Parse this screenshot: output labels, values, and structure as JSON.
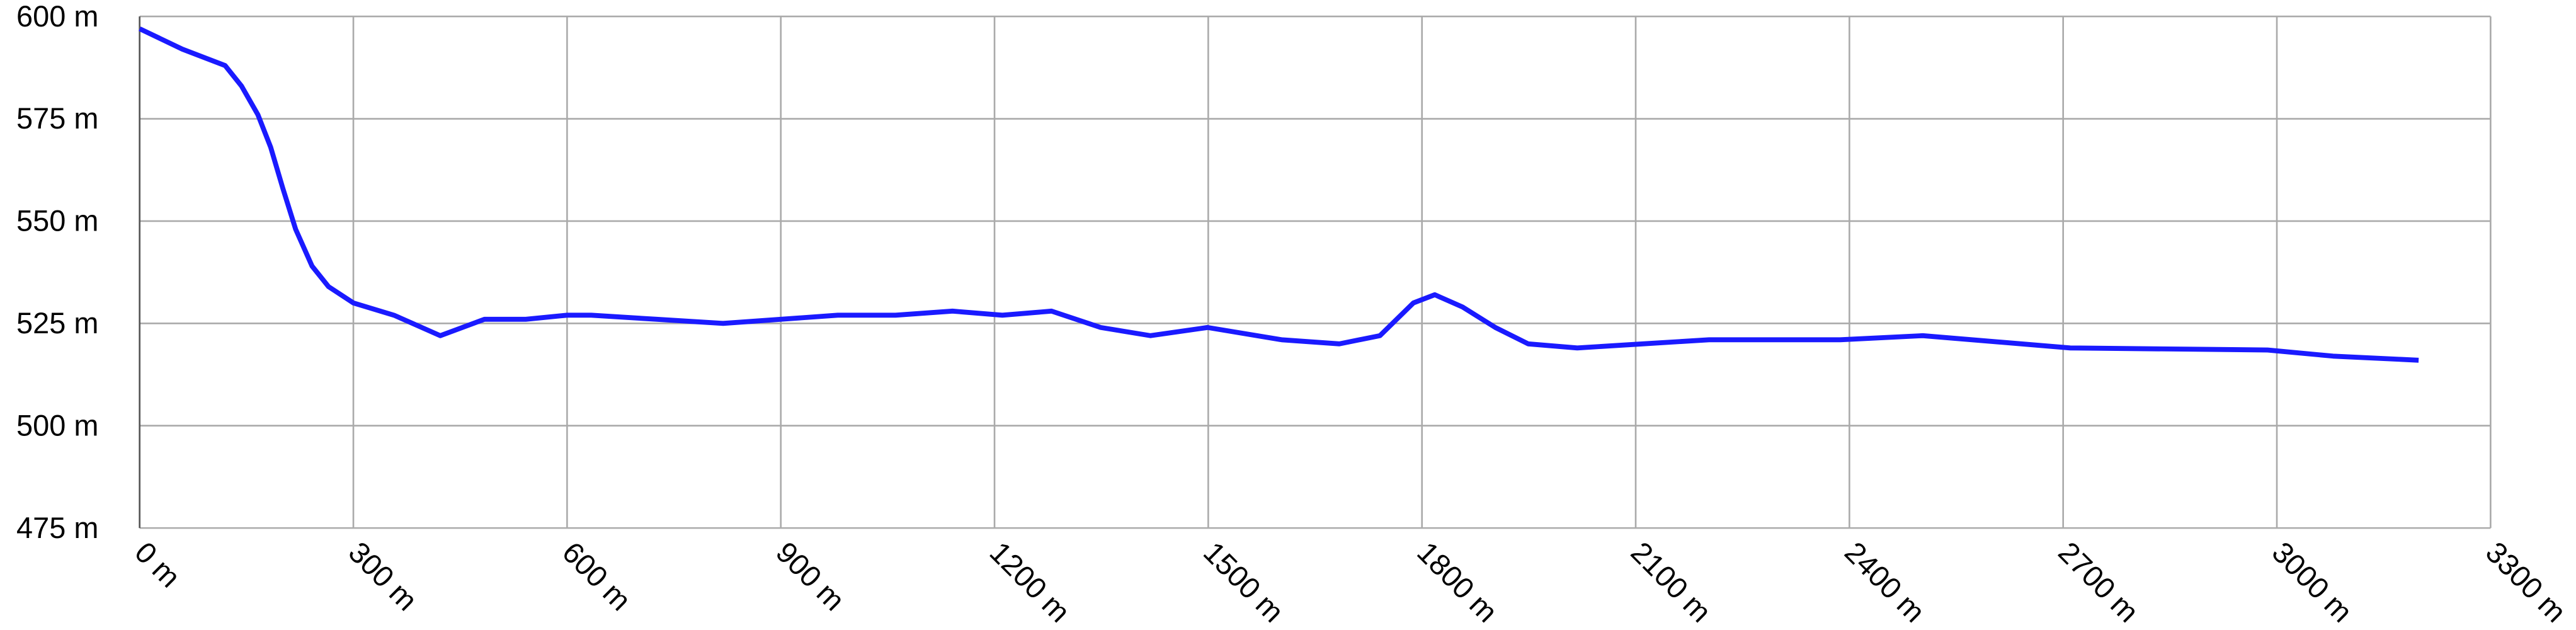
{
  "chart_data": {
    "type": "line",
    "x": [
      0,
      60,
      120,
      143,
      166,
      184,
      201,
      219,
      242,
      265,
      300,
      357,
      422,
      484,
      542,
      600,
      634,
      726,
      819,
      980,
      1061,
      1141,
      1211,
      1280,
      1349,
      1419,
      1499,
      1603,
      1684,
      1741,
      1788,
      1818,
      1857,
      1903,
      1949,
      2018,
      2110,
      2203,
      2387,
      2503,
      2710,
      2987,
      3079,
      3199
    ],
    "series": [
      {
        "color": "#1a1aff",
        "values": [
          597,
          592,
          588,
          583,
          576,
          568,
          558,
          548,
          539,
          534,
          530,
          527,
          522,
          526,
          526,
          527,
          527,
          526,
          525,
          527,
          527,
          528,
          527,
          528,
          524,
          522,
          524,
          521,
          520,
          522,
          530,
          532,
          529,
          524,
          520,
          519,
          520,
          521,
          521,
          522,
          519,
          518.5,
          517,
          516
        ]
      }
    ],
    "xlim": [
      0,
      3300
    ],
    "xticks": [
      {
        "value": 0,
        "label": "0 m"
      },
      {
        "value": 300,
        "label": "300 m"
      },
      {
        "value": 600,
        "label": "600 m"
      },
      {
        "value": 900,
        "label": "900 m"
      },
      {
        "value": 1200,
        "label": "1200 m"
      },
      {
        "value": 1500,
        "label": "1500 m"
      },
      {
        "value": 1800,
        "label": "1800 m"
      },
      {
        "value": 2100,
        "label": "2100 m"
      },
      {
        "value": 2400,
        "label": "2400 m"
      },
      {
        "value": 2700,
        "label": "2700 m"
      },
      {
        "value": 3000,
        "label": "3000 m"
      },
      {
        "value": 3300,
        "label": "3300 m"
      }
    ],
    "ylim": [
      475,
      600
    ],
    "yticks": [
      {
        "value": 475,
        "label": "475 m"
      },
      {
        "value": 500,
        "label": "500 m"
      },
      {
        "value": 525,
        "label": "525 m"
      },
      {
        "value": 550,
        "label": "550 m"
      },
      {
        "value": 575,
        "label": "575 m"
      },
      {
        "value": 600,
        "label": "600 m"
      }
    ],
    "grid": true
  }
}
